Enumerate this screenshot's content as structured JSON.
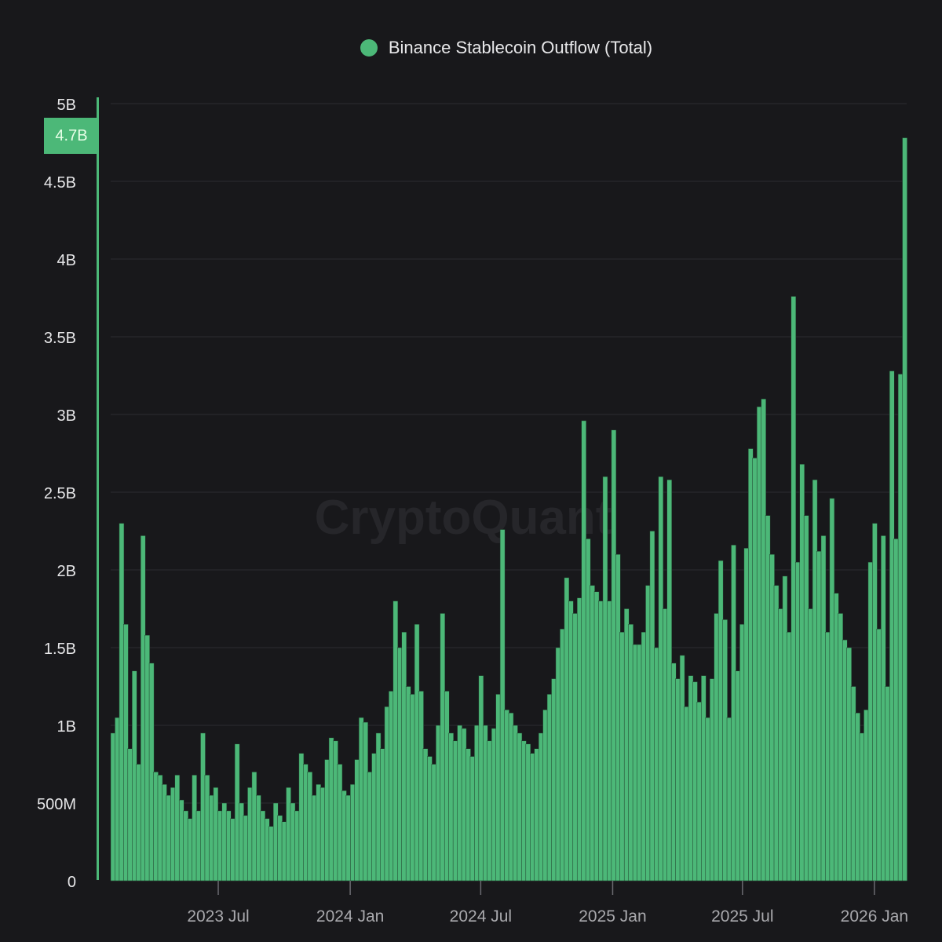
{
  "legend": {
    "label": "Binance Stablecoin Outflow (Total)",
    "color": "#4cb878"
  },
  "crosshair": {
    "value_label": "4.7B"
  },
  "watermark": "CryptoQuant",
  "colors": {
    "background": "#18181b",
    "grid": "#2b2b30",
    "bar": "#4cb878",
    "bar_edge": "#1f3a2a",
    "axis_text": "#e6e6e8",
    "x_text": "#a9a9ad"
  },
  "chart_data": {
    "type": "bar",
    "title": "Binance Stablecoin Outflow (Total)",
    "xlabel": "",
    "ylabel": "",
    "ylim": [
      0,
      5000000000
    ],
    "y_ticks": [
      0,
      500000000,
      1000000000,
      1500000000,
      2000000000,
      2500000000,
      3000000000,
      3500000000,
      4000000000,
      4500000000,
      5000000000
    ],
    "y_tick_labels": [
      "0",
      "500M",
      "1B",
      "1.5B",
      "2B",
      "2.5B",
      "3B",
      "3.5B",
      "4B",
      "4.5B",
      "5B"
    ],
    "x_range": [
      "2023-02-01",
      "2026-02-15"
    ],
    "x_ticks": [
      "2023-07-01",
      "2024-01-01",
      "2024-07-01",
      "2025-01-01",
      "2025-07-01",
      "2026-01-01"
    ],
    "x_tick_labels": [
      "2023 Jul",
      "2024 Jan",
      "2024 Jul",
      "2025 Jan",
      "2025 Jul",
      "2026 Jan"
    ],
    "series": [
      {
        "name": "Binance Stablecoin Outflow (Total)",
        "start": "2023-02-01",
        "unit": "B",
        "values": [
          0.95,
          1.05,
          2.3,
          1.65,
          0.85,
          1.35,
          0.75,
          2.22,
          1.58,
          1.4,
          0.7,
          0.68,
          0.62,
          0.55,
          0.6,
          0.68,
          0.52,
          0.45,
          0.4,
          0.68,
          0.45,
          0.95,
          0.68,
          0.55,
          0.6,
          0.45,
          0.5,
          0.45,
          0.4,
          0.88,
          0.5,
          0.42,
          0.6,
          0.7,
          0.55,
          0.45,
          0.4,
          0.35,
          0.5,
          0.42,
          0.38,
          0.6,
          0.5,
          0.45,
          0.82,
          0.75,
          0.7,
          0.55,
          0.62,
          0.6,
          0.78,
          0.92,
          0.9,
          0.75,
          0.58,
          0.55,
          0.62,
          0.78,
          1.05,
          1.02,
          0.7,
          0.82,
          0.95,
          0.85,
          1.12,
          1.22,
          1.8,
          1.5,
          1.6,
          1.25,
          1.2,
          1.65,
          1.22,
          0.85,
          0.8,
          0.75,
          1.0,
          1.72,
          1.22,
          0.95,
          0.9,
          1.0,
          0.98,
          0.85,
          0.8,
          1.0,
          1.32,
          1.0,
          0.9,
          0.98,
          1.2,
          2.26,
          1.1,
          1.08,
          1.0,
          0.95,
          0.9,
          0.88,
          0.82,
          0.85,
          0.95,
          1.1,
          1.2,
          1.3,
          1.5,
          1.62,
          1.95,
          1.8,
          1.72,
          1.82,
          2.96,
          2.2,
          1.9,
          1.86,
          1.8,
          2.6,
          1.8,
          2.9,
          2.1,
          1.6,
          1.75,
          1.65,
          1.52,
          1.52,
          1.6,
          1.9,
          2.25,
          1.5,
          2.6,
          1.75,
          2.58,
          1.4,
          1.3,
          1.45,
          1.12,
          1.32,
          1.28,
          1.15,
          1.32,
          1.05,
          1.3,
          1.72,
          2.06,
          1.68,
          1.05,
          2.16,
          1.35,
          1.65,
          2.14,
          2.78,
          2.72,
          3.05,
          3.1,
          2.35,
          2.1,
          1.9,
          1.75,
          1.96,
          1.6,
          3.76,
          2.05,
          2.68,
          2.35,
          1.75,
          2.58,
          2.12,
          2.22,
          1.6,
          2.46,
          1.85,
          1.72,
          1.55,
          1.5,
          1.25,
          1.08,
          0.95,
          1.1,
          2.05,
          2.3,
          1.62,
          2.22,
          1.25,
          3.28,
          2.2,
          3.26,
          4.78
        ]
      }
    ]
  }
}
